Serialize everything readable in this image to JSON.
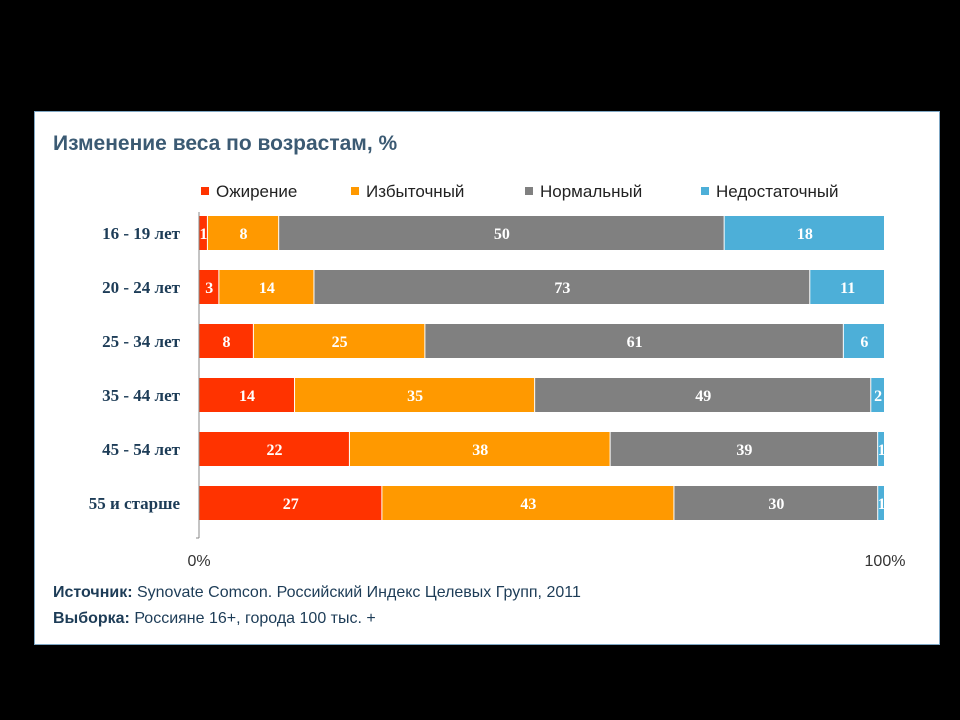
{
  "chart_data": {
    "type": "bar",
    "orientation": "horizontal",
    "stacked": true,
    "title": "Изменение веса по возрастам, %",
    "categories": [
      "16 - 19 лет",
      "20 - 24 лет",
      "25 - 34 лет",
      "35 - 44 лет",
      "45 - 54 лет",
      "55 и старше"
    ],
    "series": [
      {
        "name": "Ожирение",
        "color": "#ff3300",
        "values": [
          1,
          3,
          8,
          14,
          22,
          27
        ]
      },
      {
        "name": "Избыточный",
        "color": "#ff9900",
        "values": [
          8,
          14,
          25,
          35,
          38,
          43
        ]
      },
      {
        "name": "Нормальный",
        "color": "#808080",
        "values": [
          50,
          73,
          61,
          49,
          39,
          30
        ]
      },
      {
        "name": "Недостаточный",
        "color": "#4dafd8",
        "values": [
          18,
          11,
          6,
          2,
          1,
          1
        ]
      }
    ],
    "xaxis": {
      "min_label": "0%",
      "max_label": "100%"
    },
    "legend_position": "top"
  },
  "footer": {
    "source_label": "Источник:",
    "source_text": " Synovate Comcon. Российский Индекс Целевых Групп, 2011",
    "sample_label": "Выборка:",
    "sample_text": " Россияне 16+, города 100 тыс. +"
  }
}
